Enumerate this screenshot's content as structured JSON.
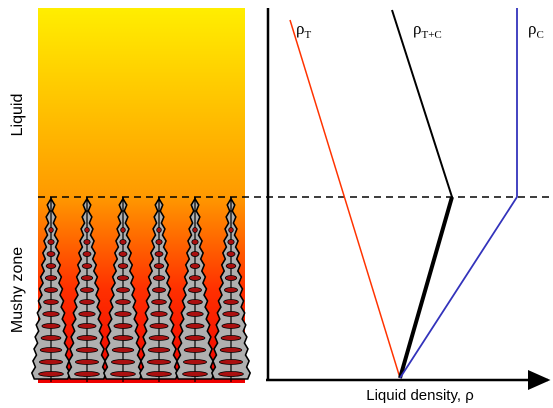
{
  "labels": {
    "liquid": "Liquid",
    "mushy_zone": "Mushy zone",
    "rho_t": {
      "base": "ρ",
      "sub": "T"
    },
    "rho_tc": {
      "base": "ρ",
      "sub": "T+C"
    },
    "rho_c": {
      "base": "ρ",
      "sub": "C"
    },
    "x_axis": "Liquid density, ρ"
  }
}
